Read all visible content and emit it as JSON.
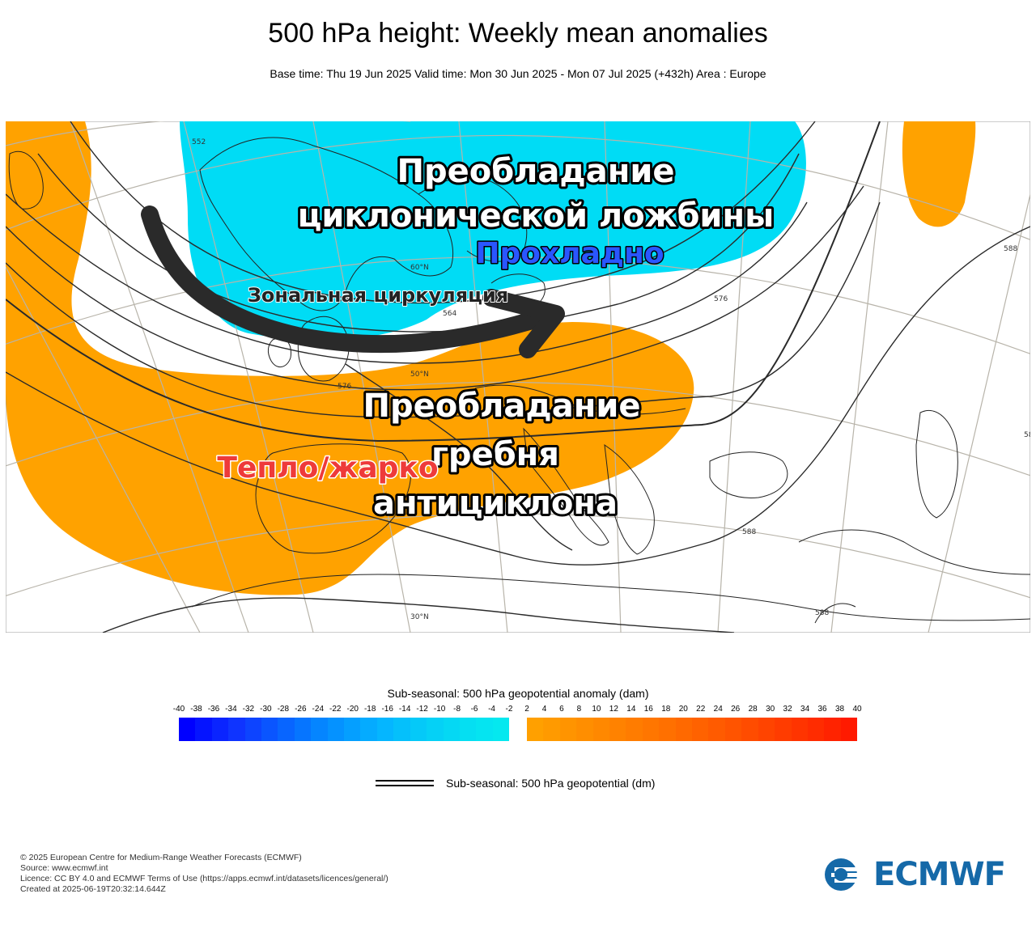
{
  "header": {
    "title": "500 hPa height: Weekly mean anomalies",
    "subtitle": "Base time: Thu 19 Jun 2025 Valid time: Mon 30 Jun 2025 - Mon 07 Jul 2025 (+432h) Area : Europe"
  },
  "map": {
    "annotations": {
      "trough_line1": "Преобладание",
      "trough_line2": "циклонической ложбины",
      "cool": "Прохладно",
      "zonal": "Зональная циркуляция",
      "ridge_line1": "Преобладание",
      "ridge_line2": "гребня",
      "ridge_line3": "антициклона",
      "warm": "Тепло/жарко"
    },
    "contour_labels": [
      "552",
      "564",
      "576",
      "588",
      "576",
      "588",
      "588",
      "588",
      "30°N",
      "50°N",
      "60°N"
    ],
    "colors": {
      "negative_anomaly": "#00dcf5",
      "positive_anomaly": "#ffa200",
      "arrow": "#2a2a2a",
      "cool_text": "#2a56ff",
      "warm_text": "#ee3a3a"
    }
  },
  "legend": {
    "anomaly_title": "Sub-seasonal: 500 hPa geopotential anomaly (dam)",
    "negative_ticks": [
      "-40",
      "-38",
      "-36",
      "-34",
      "-32",
      "-30",
      "-28",
      "-26",
      "-24",
      "-22",
      "-20",
      "-18",
      "-16",
      "-14",
      "-12",
      "-10",
      "-8",
      "-6",
      "-4",
      "-2"
    ],
    "positive_ticks": [
      "2",
      "4",
      "6",
      "8",
      "10",
      "12",
      "14",
      "16",
      "18",
      "20",
      "22",
      "24",
      "26",
      "28",
      "30",
      "32",
      "34",
      "36",
      "38",
      "40"
    ],
    "negative_colors": [
      "#0000ff",
      "#0514ff",
      "#0a24ff",
      "#0f34ff",
      "#0d44ff",
      "#0a55ff",
      "#0865ff",
      "#0675ff",
      "#0585ff",
      "#0592ff",
      "#059fff",
      "#05abff",
      "#05b6ff",
      "#05c0fb",
      "#05c9f8",
      "#05d1f6",
      "#05d8f4",
      "#05dff2",
      "#05e4f1",
      "#05e8ef"
    ],
    "positive_colors": [
      "#ffa000",
      "#ff9a00",
      "#ff9400",
      "#ff8e00",
      "#ff8800",
      "#ff8200",
      "#ff7c00",
      "#ff7600",
      "#ff7000",
      "#ff6900",
      "#ff6200",
      "#ff5b00",
      "#ff5400",
      "#ff4c00",
      "#ff4400",
      "#ff3c00",
      "#ff3400",
      "#ff2c00",
      "#ff2300",
      "#ff1a00"
    ],
    "contour_label": "Sub-seasonal: 500 hPa geopotential (dm)"
  },
  "credits": [
    "© 2025 European Centre for Medium-Range Weather Forecasts (ECMWF)",
    "Source: www.ecmwf.int",
    "Licence: CC BY 4.0 and ECMWF Terms of Use (https://apps.ecmwf.int/datasets/licences/general/)",
    "Created at 2025-06-19T20:32:14.644Z"
  ],
  "logo": {
    "text": "ECMWF",
    "color": "#1569a8"
  }
}
